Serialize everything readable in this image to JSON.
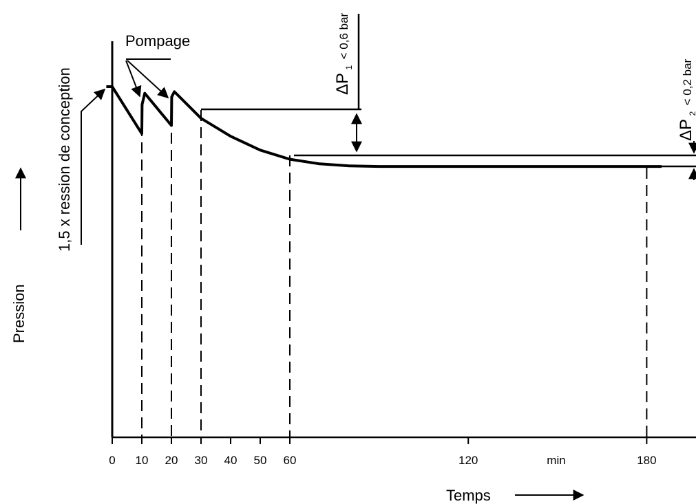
{
  "chart_data": {
    "type": "line",
    "title": "",
    "xlabel": "Temps",
    "ylabel": "Pression",
    "x_unit_label": "min",
    "x_ticks": [
      {
        "value": 0,
        "label": "0"
      },
      {
        "value": 10,
        "label": "10"
      },
      {
        "value": 20,
        "label": "20"
      },
      {
        "value": 30,
        "label": "30"
      },
      {
        "value": 40,
        "label": "40"
      },
      {
        "value": 50,
        "label": "50"
      },
      {
        "value": 60,
        "label": "60"
      },
      {
        "value": 120,
        "label": "120"
      },
      {
        "value": 180,
        "label": "180"
      }
    ],
    "xlim": [
      0,
      195
    ],
    "grid": false,
    "legend": "none",
    "reference_times": [
      10,
      20,
      30,
      60,
      180
    ],
    "annotations": {
      "test_pressure": "1,5 x ression de conception",
      "pumping": "Pompage",
      "delta_p1": {
        "symbol": "ΔP",
        "subscript": "1",
        "text": "< 0,6 bar"
      },
      "delta_p2": {
        "symbol": "ΔP",
        "subscript": "2",
        "text": "< 0,2 bar"
      }
    },
    "series": [
      {
        "points": [
          {
            "x": -2,
            "y": 1.0
          },
          {
            "x": 0,
            "y": 1.0
          },
          {
            "x": 10,
            "y": 0.908
          },
          {
            "x": 10.1,
            "y": 0.965
          },
          {
            "x": 11,
            "y": 0.987
          },
          {
            "x": 20,
            "y": 0.924
          },
          {
            "x": 20.1,
            "y": 0.98
          },
          {
            "x": 21,
            "y": 0.99
          },
          {
            "x": 30,
            "y": 0.938
          },
          {
            "x": 40,
            "y": 0.903
          },
          {
            "x": 50,
            "y": 0.876
          },
          {
            "x": 60,
            "y": 0.858
          },
          {
            "x": 70,
            "y": 0.849
          },
          {
            "x": 80,
            "y": 0.845
          },
          {
            "x": 90,
            "y": 0.844
          },
          {
            "x": 120,
            "y": 0.844
          },
          {
            "x": 150,
            "y": 0.844
          },
          {
            "x": 180,
            "y": 0.844
          },
          {
            "x": 185,
            "y": 0.844
          }
        ]
      }
    ]
  }
}
